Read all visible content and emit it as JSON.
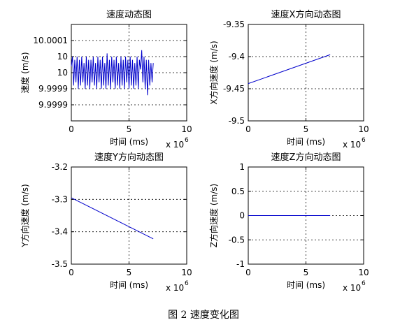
{
  "figure": {
    "caption": "图 2  速度变化图"
  },
  "chart_data": [
    {
      "type": "line",
      "title": "速度动态图",
      "xlabel": "时间 (ms)",
      "ylabel": "速度 (m/s)",
      "x_multiplier": "x 10",
      "x_multiplier_exp": "6",
      "xlim": [
        0,
        10
      ],
      "ylim": [
        9.99985,
        10.00015
      ],
      "xticks": [
        0,
        5,
        10
      ],
      "xtick_labels": [
        "0",
        "5",
        "10"
      ],
      "yticks": [
        10.0001,
        10.00005,
        10.0,
        9.99995,
        9.9999
      ],
      "ytick_labels": [
        "10.0001",
        "10",
        "10",
        "9.9999",
        "9.9999"
      ],
      "grid": true,
      "series": [
        {
          "color": "#0000cc",
          "x": [
            0.0,
            0.1,
            0.2,
            0.3,
            0.4,
            0.5,
            0.6,
            0.7,
            0.8,
            0.9,
            1.0,
            1.1,
            1.2,
            1.3,
            1.4,
            1.5,
            1.6,
            1.7,
            1.8,
            1.9,
            2.0,
            2.1,
            2.2,
            2.3,
            2.4,
            2.5,
            2.6,
            2.7,
            2.8,
            2.9,
            3.0,
            3.1,
            3.2,
            3.3,
            3.4,
            3.5,
            3.6,
            3.7,
            3.8,
            3.9,
            4.0,
            4.1,
            4.2,
            4.3,
            4.4,
            4.5,
            4.6,
            4.7,
            4.8,
            4.9,
            5.0,
            5.1,
            5.2,
            5.3,
            5.4,
            5.5,
            5.6,
            5.7,
            5.8,
            5.9,
            6.0,
            6.1,
            6.2,
            6.3,
            6.4,
            6.5,
            6.6,
            6.7,
            6.8,
            6.9,
            7.0,
            7.1
          ],
          "y": [
            10.00002,
            10.00005,
            9.99996,
            10.00004,
            9.99997,
            10.00005,
            9.99995,
            10.00004,
            9.99996,
            10.00005,
            9.99997,
            10.00003,
            9.99995,
            10.00005,
            9.99996,
            10.00004,
            9.99995,
            10.00004,
            9.99997,
            10.00005,
            9.99996,
            10.00003,
            9.99995,
            10.00005,
            9.99997,
            10.00004,
            9.99995,
            10.00005,
            9.99996,
            10.00003,
            9.99995,
            10.00006,
            9.99996,
            10.00004,
            9.99995,
            10.00005,
            9.99997,
            10.00004,
            9.99995,
            10.00005,
            9.99996,
            10.00003,
            9.99995,
            10.00005,
            9.99996,
            10.00004,
            9.99995,
            10.00005,
            9.99997,
            10.00004,
            9.99995,
            10.00005,
            9.99996,
            10.00004,
            9.99995,
            10.00003,
            9.99996,
            10.00005,
            9.99995,
            10.00004,
            10.00001,
            10.00007,
            9.99997,
            10.00005,
            9.99995,
            10.00004,
            9.99993,
            10.00004,
            9.99996,
            10.00003,
            9.99997,
            10.00003
          ]
        }
      ]
    },
    {
      "type": "line",
      "title": "速度X方向动态图",
      "xlabel": "时间 (ms)",
      "ylabel": "X方向速度 (m/s)",
      "x_multiplier": "x 10",
      "x_multiplier_exp": "6",
      "xlim": [
        0,
        10
      ],
      "ylim": [
        -9.5,
        -9.35
      ],
      "xticks": [
        0,
        5,
        10
      ],
      "xtick_labels": [
        "0",
        "5",
        "10"
      ],
      "yticks": [
        -9.35,
        -9.4,
        -9.45,
        -9.5
      ],
      "ytick_labels": [
        "-9.35",
        "-9.4",
        "-9.45",
        "-9.5"
      ],
      "grid": true,
      "series": [
        {
          "color": "#0000cc",
          "x": [
            0,
            7.1
          ],
          "y": [
            -9.442,
            -9.397
          ]
        }
      ]
    },
    {
      "type": "line",
      "title": "速度Y方向动态图",
      "xlabel": "时间 (ms)",
      "ylabel": "Y方向速度 (m/s)",
      "x_multiplier": "x 10",
      "x_multiplier_exp": "6",
      "xlim": [
        0,
        10
      ],
      "ylim": [
        -3.5,
        -3.2
      ],
      "xticks": [
        0,
        5,
        10
      ],
      "xtick_labels": [
        "0",
        "5",
        "10"
      ],
      "yticks": [
        -3.2,
        -3.3,
        -3.4,
        -3.5
      ],
      "ytick_labels": [
        "-3.2",
        "-3.3",
        "-3.4",
        "-3.5"
      ],
      "grid": true,
      "series": [
        {
          "color": "#0000cc",
          "x": [
            0,
            7.1
          ],
          "y": [
            -3.295,
            -3.422
          ]
        }
      ]
    },
    {
      "type": "line",
      "title": "速度Z方向动态图",
      "xlabel": "时间 (ms)",
      "ylabel": "Z方向速度 (m/s)",
      "x_multiplier": "x 10",
      "x_multiplier_exp": "6",
      "xlim": [
        0,
        10
      ],
      "ylim": [
        -1,
        1
      ],
      "xticks": [
        0,
        5,
        10
      ],
      "xtick_labels": [
        "0",
        "5",
        "10"
      ],
      "yticks": [
        1,
        0.5,
        0,
        -0.5,
        -1
      ],
      "ytick_labels": [
        "1",
        "0.5",
        "0",
        "-0.5",
        "-1"
      ],
      "grid": true,
      "series": [
        {
          "color": "#0000cc",
          "x": [
            0,
            7.1
          ],
          "y": [
            0,
            0
          ]
        }
      ]
    }
  ]
}
